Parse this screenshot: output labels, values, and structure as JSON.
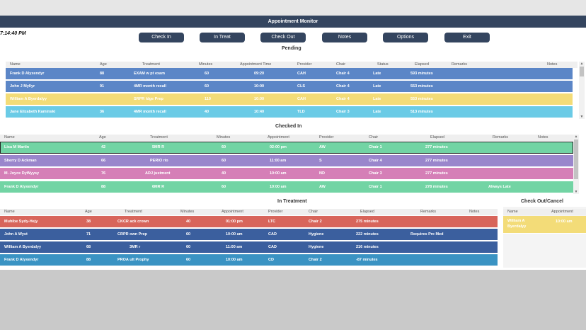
{
  "window": {
    "title": "Appointment Monitor"
  },
  "clock": "7:14:40 PM",
  "toolbar": {
    "buttons": [
      "Check In",
      "In Treat",
      "Check Out",
      "Notes",
      "Options",
      "Exit"
    ]
  },
  "pending": {
    "title": "Pending",
    "columns": [
      "Name",
      "Age",
      "Treatment",
      "Minutes",
      "Appointment Time",
      "Provider",
      "Chair",
      "Status",
      "Elapsed",
      "Remarks",
      "Notes"
    ],
    "rows": [
      [
        "Frank D Alyxendyr",
        "88",
        "EXAM w pt exam",
        "60",
        "09:20",
        "CAH",
        "Chair 4",
        "Late",
        "593 minutes",
        "",
        ""
      ],
      [
        "John J Myllyr",
        "91",
        "4MR month recall",
        "60",
        "10:00",
        "CLS",
        "Chair 4",
        "Late",
        "553 minutes",
        "",
        ""
      ],
      [
        "William A Byerdalyy",
        "",
        "SRPR ldge Prep",
        "110",
        "10:00",
        "CAH",
        "Chair 4",
        "Late",
        "553 minutes",
        "",
        ""
      ],
      [
        "Jane Elizabeth Kaminski",
        "36",
        "4MR month recall",
        "40",
        "10:40",
        "TLD",
        "Chair 3",
        "Late",
        "513 minutes",
        "",
        ""
      ]
    ]
  },
  "checked_in": {
    "title": "Checked In",
    "columns": [
      "Name",
      "Age",
      "Treatment",
      "Minutes",
      "Appointment",
      "Provider",
      "Chair",
      "Elapsed",
      "Remarks",
      "Notes"
    ],
    "rows": [
      [
        "Lisa M Martin",
        "42",
        "5MR R",
        "60",
        "02:00 pm",
        "AW",
        "Chair 1",
        "277 minutes",
        "",
        ""
      ],
      [
        "Sherry D Ackman",
        "66",
        "PERIO rio",
        "60",
        "11:00 am",
        "S",
        "Chair 4",
        "277 minutes",
        "",
        ""
      ],
      [
        "M. Joyce DyWyysy",
        "76",
        "ADJ justment",
        "40",
        "10:00 am",
        "ND",
        "Chair 3",
        "277 minutes",
        "",
        ""
      ],
      [
        "Frank D Alyxendyr",
        "88",
        "6MR R",
        "60",
        "10:00 am",
        "AW",
        "Chair 1",
        "278 minutes",
        "Always Late",
        ""
      ]
    ]
  },
  "in_treatment": {
    "title": "In Treatment",
    "columns": [
      "Name",
      "Age",
      "Treatment",
      "Minutes",
      "Appointment",
      "Provider",
      "Chair",
      "Elapsed",
      "Remarks",
      "Notes"
    ],
    "rows": [
      [
        "Muhibe Sydy-Hejy",
        "38",
        "CKCR ack crown",
        "40",
        "01:00 pm",
        "LTC",
        "Chair 2",
        "275 minutes",
        "",
        ""
      ],
      [
        "John A Wyst",
        "71",
        "CRPR own Prep",
        "60",
        "10:00 am",
        "CAD",
        "Hygiene",
        "222 minutes",
        "Requires Pre Med",
        ""
      ],
      [
        "William A Byerdalyy",
        "68",
        "3MR r",
        "60",
        "11:00 am",
        "CAD",
        "Hygiene",
        "216 minutes",
        "",
        ""
      ],
      [
        "Frank D Alyxendyr",
        "88",
        "PROA ult Prophy",
        "60",
        "10:00 am",
        "CD",
        "Chair 2",
        "-87 minutes",
        "",
        ""
      ]
    ]
  },
  "check_out": {
    "title": "Check Out/Cancel",
    "columns": [
      "Name",
      "Appointment"
    ],
    "rows": [
      [
        "William A Byerdalyy",
        "10:00 am"
      ]
    ]
  },
  "colors": {
    "titlebar": "#34455f",
    "row_blue": "#5b86c7",
    "row_yellow": "#f3dc78",
    "row_cyan": "#6bcbe6",
    "row_green": "#72d4a4",
    "row_purple": "#9a86cc",
    "row_pink": "#d57fb7",
    "row_red": "#d8655b",
    "row_navy": "#3b5f9e",
    "row_teal": "#3a93c3"
  }
}
